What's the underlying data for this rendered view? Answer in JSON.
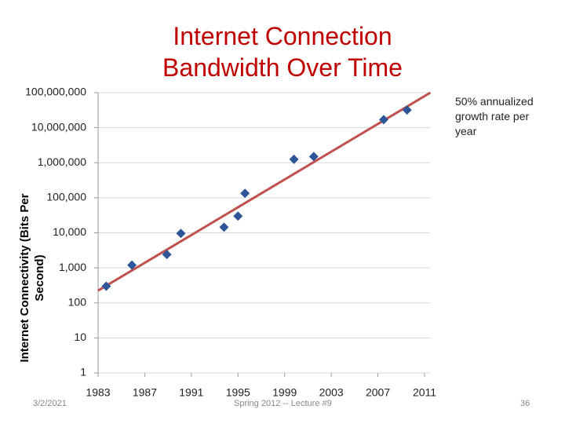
{
  "chart_data": {
    "type": "scatter",
    "title": "Internet Connection Bandwidth Over Time",
    "y_label": "Internet Connectivity (Bits Per Second)",
    "annotation": "50% annualized growth rate per year",
    "log_y": true,
    "grid": true,
    "xlim": [
      1983,
      2011
    ],
    "xticks": [
      1983,
      1987,
      1991,
      1995,
      1999,
      2003,
      2007,
      2011
    ],
    "ylim": [
      1,
      100000000
    ],
    "yticks": [
      1,
      10,
      100,
      {
        "value": 1000,
        "label": "1,000"
      },
      {
        "value": 10000,
        "label": "10,000"
      },
      {
        "value": 100000,
        "label": "100,000"
      },
      {
        "value": 1000000,
        "label": "1,000,000"
      },
      {
        "value": 10000000,
        "label": "10,000,000"
      },
      {
        "value": 100000000,
        "label": "100,000,000"
      }
    ],
    "series": [
      {
        "color": "#2e5597",
        "x": [
          1983.7,
          1985.9,
          1988.9,
          1990.1,
          1993.8,
          1995,
          1995.6,
          1999.8,
          2001.5,
          2007.5,
          2009.5
        ],
        "values": [
          300,
          1200,
          2400,
          9600,
          14400,
          30000,
          134000,
          1250000,
          1500000,
          17000000,
          32000000
        ]
      }
    ],
    "trend_line": {
      "color": "#c0504d",
      "x": [
        1983,
        2011.5
      ],
      "values": [
        224,
        100000000
      ]
    }
  },
  "footer": {
    "date": "3/2/2021",
    "course": "Spring 2012 -- Lecture #9",
    "page": "36"
  }
}
